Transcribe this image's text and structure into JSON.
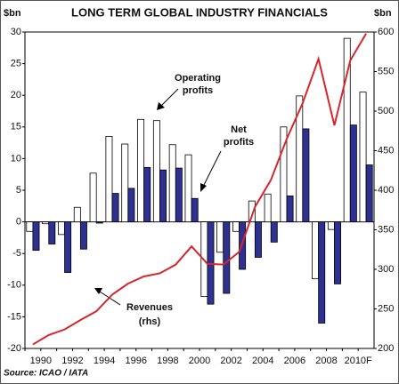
{
  "chart_data": {
    "type": "bar-line",
    "title": "LONG TERM GLOBAL INDUSTRY FINANCIALS",
    "y_label": "$bn",
    "y2_label": "$bn",
    "source": "Source: ICAO / IATA",
    "annotations": [
      [
        "Operating",
        "profits"
      ],
      [
        "Net",
        "profits"
      ],
      [
        "Revenues",
        "(rhs)"
      ]
    ],
    "categories": [
      "1990",
      null,
      "1992",
      null,
      "1994",
      null,
      "1996",
      null,
      "1998",
      null,
      "2000",
      null,
      "2002",
      null,
      "2004",
      null,
      "2006",
      null,
      "2008",
      null,
      "2010F",
      null
    ],
    "series": [
      {
        "name": "Operating profits",
        "color": "#ffffff",
        "values": [
          -1.5,
          -0.3,
          -2,
          2.3,
          7.7,
          13.5,
          12.3,
          16.2,
          16,
          12.2,
          10.6,
          -11.8,
          -4.8,
          -1.5,
          3.3,
          4.4,
          15,
          19.9,
          -9,
          -1.2,
          29,
          20.5
        ]
      },
      {
        "name": "Net profits",
        "color": "#2e3192",
        "values": [
          -4.5,
          -3.5,
          -8,
          -4.3,
          -0.2,
          4.5,
          5.3,
          8.6,
          8.2,
          8.5,
          3.7,
          -13,
          -11.3,
          -7.5,
          -5.6,
          -3.2,
          4.1,
          14.7,
          -16,
          -9.8,
          15.3,
          9
        ]
      },
      {
        "name": "Revenues",
        "color": "#d7262b",
        "axis": "y2",
        "values": [
          205,
          217,
          224,
          236,
          247,
          268,
          282,
          291,
          295,
          306,
          329,
          307,
          306,
          322,
          379,
          413,
          465,
          510,
          566,
          482,
          564,
          598
        ]
      }
    ],
    "ylim": [
      -20,
      30
    ],
    "yticks": [
      -20,
      -15,
      -10,
      -5,
      0,
      5,
      10,
      15,
      20,
      25,
      30
    ],
    "y2lim": [
      200,
      600
    ],
    "y2ticks": [
      200,
      250,
      300,
      350,
      400,
      450,
      500,
      550,
      600
    ]
  }
}
